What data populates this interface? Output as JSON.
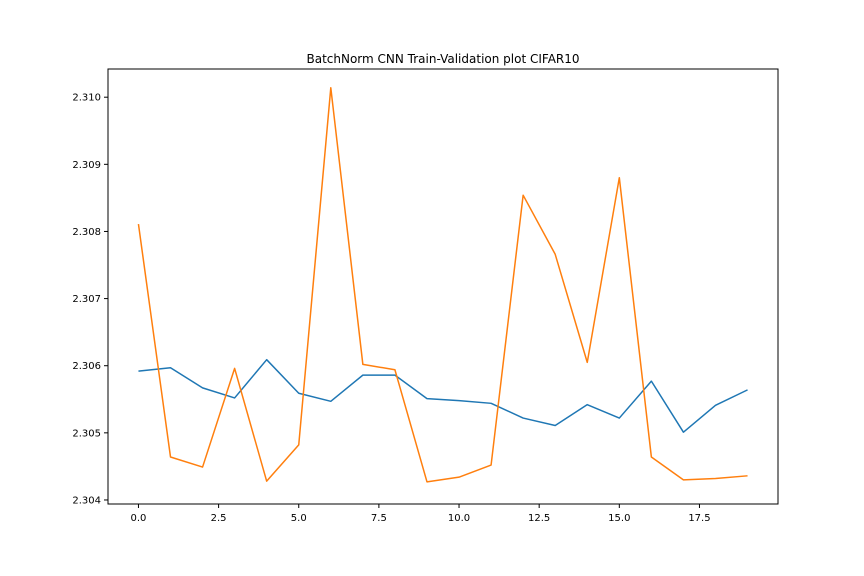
{
  "chart_data": {
    "type": "line",
    "title": "BatchNorm CNN Train-Validation plot CIFAR10",
    "xlabel": "",
    "ylabel": "",
    "xlim": [
      -0.95,
      19.95
    ],
    "ylim": [
      2.30394,
      2.31042
    ],
    "x_ticks": [
      {
        "value": 0.0,
        "label": "0.0"
      },
      {
        "value": 2.5,
        "label": "2.5"
      },
      {
        "value": 5.0,
        "label": "5.0"
      },
      {
        "value": 7.5,
        "label": "7.5"
      },
      {
        "value": 10.0,
        "label": "10.0"
      },
      {
        "value": 12.5,
        "label": "12.5"
      },
      {
        "value": 15.0,
        "label": "15.0"
      },
      {
        "value": 17.5,
        "label": "17.5"
      }
    ],
    "y_ticks": [
      {
        "value": 2.304,
        "label": "2.304"
      },
      {
        "value": 2.305,
        "label": "2.305"
      },
      {
        "value": 2.306,
        "label": "2.306"
      },
      {
        "value": 2.307,
        "label": "2.307"
      },
      {
        "value": 2.308,
        "label": "2.308"
      },
      {
        "value": 2.309,
        "label": "2.309"
      },
      {
        "value": 2.31,
        "label": "2.310"
      }
    ],
    "grid": false,
    "legend": "none",
    "x": [
      0,
      1,
      2,
      3,
      4,
      5,
      6,
      7,
      8,
      9,
      10,
      11,
      12,
      13,
      14,
      15,
      16,
      17,
      18,
      19
    ],
    "series": [
      {
        "color": "#1f77b4",
        "values": [
          2.30592,
          2.30597,
          2.30567,
          2.30552,
          2.30609,
          2.30559,
          2.30547,
          2.30586,
          2.30586,
          2.30551,
          2.30548,
          2.30544,
          2.30522,
          2.30511,
          2.30542,
          2.30522,
          2.30577,
          2.30501,
          2.30541,
          2.30564
        ]
      },
      {
        "color": "#ff7f0e",
        "values": [
          2.30811,
          2.30464,
          2.30449,
          2.30596,
          2.30428,
          2.30482,
          2.31014,
          2.30602,
          2.30594,
          2.30427,
          2.30434,
          2.30452,
          2.30854,
          2.30766,
          2.30605,
          2.3088,
          2.30464,
          2.3043,
          2.30432,
          2.30436
        ]
      }
    ]
  }
}
